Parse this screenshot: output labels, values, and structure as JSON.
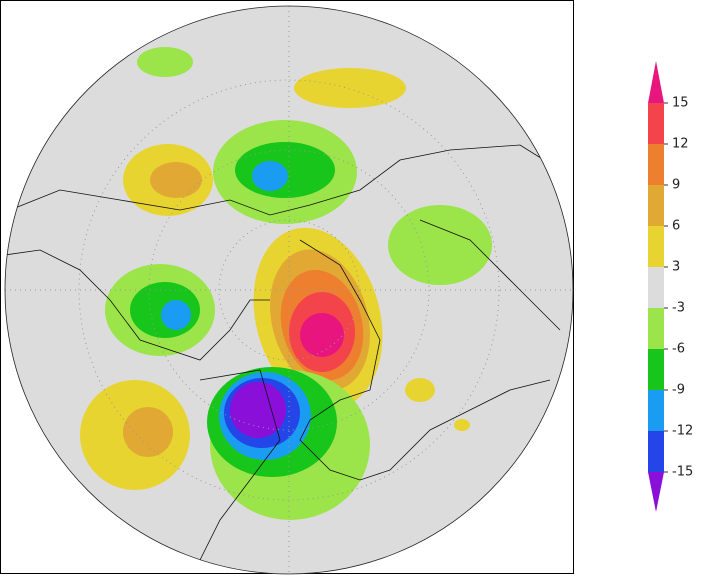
{
  "colorbar": {
    "levels": [
      15,
      12,
      9,
      6,
      3,
      -3,
      -6,
      -9,
      -12,
      -15
    ],
    "colors": [
      "#e8157f",
      "#f2444a",
      "#ee7f2f",
      "#e2a834",
      "#e8d431",
      "#dcdcdc",
      "#9be44a",
      "#18c51a",
      "#1a9cf2",
      "#2446e8",
      "#8a0fd8"
    ]
  }
}
